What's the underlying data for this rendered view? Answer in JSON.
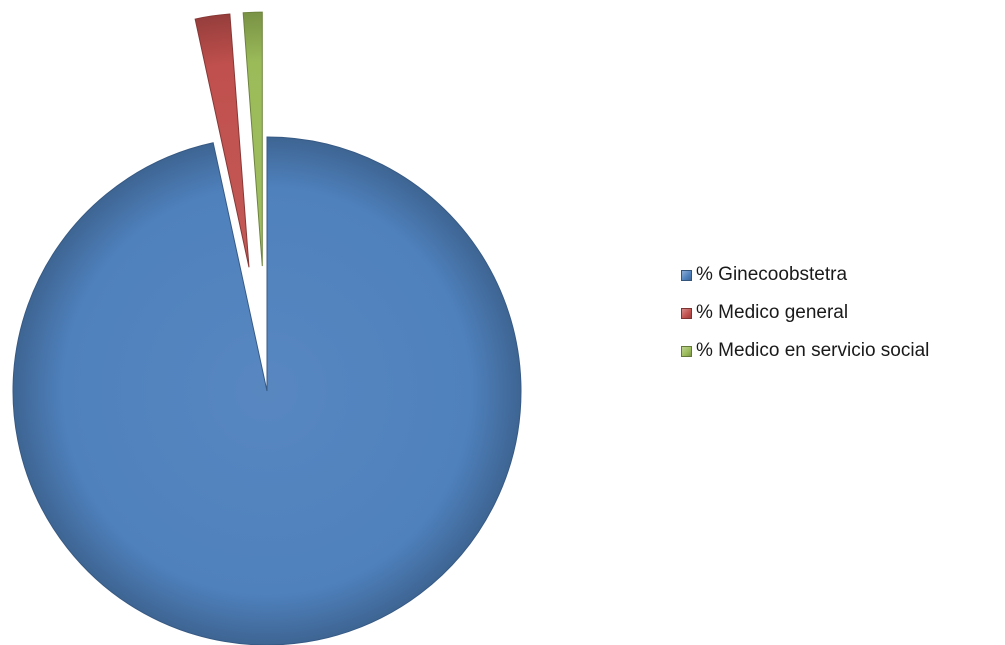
{
  "chart_data": {
    "type": "pie",
    "title": "",
    "series": [
      {
        "name": "",
        "values": [
          96.6,
          2.2,
          1.2
        ],
        "labels": [
          "% Ginecoobstetra",
          "% Medico general",
          "% Medico en servicio social"
        ],
        "colors": [
          "#4F81BD",
          "#C0504D",
          "#9BBB59"
        ],
        "exploded": [
          true,
          true,
          true
        ]
      }
    ],
    "legend_position": "right",
    "start_angle_deg": 0,
    "direction": "clockwise"
  }
}
